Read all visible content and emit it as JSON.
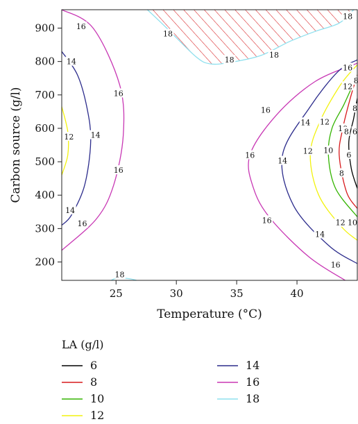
{
  "chart_data": {
    "type": "contour",
    "xlabel": "Temperature (°C)",
    "ylabel": "Carbon source (g/l)",
    "xlim": [
      20.5,
      45
    ],
    "ylim": [
      145,
      955
    ],
    "x_ticks": [
      25,
      30,
      35,
      40
    ],
    "y_ticks": [
      200,
      300,
      400,
      500,
      600,
      700,
      800,
      900
    ],
    "grid": false,
    "legend": {
      "title": "LA (g/l)",
      "placement": "bottom",
      "entries": [
        {
          "label": "6",
          "color": "#000000"
        },
        {
          "label": "8",
          "color": "#d7191c"
        },
        {
          "label": "10",
          "color": "#33b400"
        },
        {
          "label": "12",
          "color": "#f2f20d"
        },
        {
          "label": "14",
          "color": "#2c2c8c"
        },
        {
          "label": "16",
          "color": "#c837b4"
        },
        {
          "label": "18",
          "color": "#8ee0ee"
        }
      ]
    },
    "contours": [
      {
        "level": "12",
        "color": "#f2f20d",
        "points": [
          [
            20.5,
            665
          ],
          [
            21.0,
            590
          ],
          [
            21.0,
            520
          ],
          [
            20.5,
            460
          ]
        ],
        "labels": [
          {
            "x": 21.1,
            "y": 575
          }
        ]
      },
      {
        "level": "14",
        "color": "#2c2c8c",
        "points": [
          [
            20.5,
            830
          ],
          [
            21.8,
            760
          ],
          [
            22.6,
            660
          ],
          [
            22.9,
            560
          ],
          [
            22.4,
            430
          ],
          [
            21.3,
            340
          ],
          [
            20.5,
            310
          ]
        ],
        "labels": [
          {
            "x": 21.3,
            "y": 800
          },
          {
            "x": 23.3,
            "y": 580
          },
          {
            "x": 21.2,
            "y": 355
          }
        ]
      },
      {
        "level": "16",
        "color": "#c837b4",
        "points": [
          [
            20.5,
            955
          ],
          [
            23.1,
            900
          ],
          [
            25.3,
            730
          ],
          [
            25.6,
            580
          ],
          [
            24.8,
            430
          ],
          [
            23.4,
            330
          ],
          [
            20.5,
            235
          ]
        ],
        "labels": [
          {
            "x": 22.1,
            "y": 905
          },
          {
            "x": 25.2,
            "y": 705
          },
          {
            "x": 25.2,
            "y": 475
          },
          {
            "x": 22.2,
            "y": 315
          }
        ]
      },
      {
        "level": "18",
        "color": "#8ee0ee",
        "points": [
          [
            27.6,
            955
          ],
          [
            29.2,
            900
          ],
          [
            31.6,
            815
          ],
          [
            32.8,
            793
          ],
          [
            34.4,
            797
          ],
          [
            37.0,
            818
          ],
          [
            39.4,
            860
          ],
          [
            41.5,
            890
          ],
          [
            43.5,
            915
          ],
          [
            44.7,
            955
          ]
        ],
        "labels": [
          {
            "x": 29.3,
            "y": 883
          },
          {
            "x": 34.4,
            "y": 805
          },
          {
            "x": 38.1,
            "y": 820
          },
          {
            "x": 44.2,
            "y": 935
          }
        ]
      },
      {
        "level": "18",
        "color": "#8ee0ee",
        "points": [
          [
            24.6,
            145
          ],
          [
            25.1,
            152
          ],
          [
            26.1,
            150
          ],
          [
            26.7,
            145
          ]
        ],
        "labels": [
          {
            "x": 25.3,
            "y": 163
          }
        ]
      },
      {
        "level": "16",
        "color": "#c837b4",
        "points": [
          [
            45,
            795
          ],
          [
            41.5,
            740
          ],
          [
            38.3,
            640
          ],
          [
            36.1,
            520
          ],
          [
            36.4,
            420
          ],
          [
            37.8,
            330
          ],
          [
            41.0,
            215
          ],
          [
            44.0,
            145
          ]
        ],
        "labels": [
          {
            "x": 44.2,
            "y": 782
          },
          {
            "x": 37.4,
            "y": 655
          },
          {
            "x": 36.1,
            "y": 520
          },
          {
            "x": 37.5,
            "y": 325
          },
          {
            "x": 43.2,
            "y": 192
          }
        ]
      },
      {
        "level": "14",
        "color": "#2c2c8c",
        "points": [
          [
            45,
            805
          ],
          [
            43.4,
            770
          ],
          [
            41.1,
            665
          ],
          [
            38.8,
            520
          ],
          [
            39.7,
            370
          ],
          [
            42.6,
            250
          ],
          [
            45,
            195
          ]
        ],
        "labels": [
          {
            "x": 40.7,
            "y": 618
          },
          {
            "x": 38.8,
            "y": 503
          },
          {
            "x": 41.9,
            "y": 283
          }
        ]
      },
      {
        "level": "12",
        "color": "#f2f20d",
        "points": [
          [
            45,
            790
          ],
          [
            43.6,
            730
          ],
          [
            41.9,
            620
          ],
          [
            41.1,
            520
          ],
          [
            41.8,
            400
          ],
          [
            43.7,
            305
          ],
          [
            45,
            265
          ]
        ],
        "labels": [
          {
            "x": 44.2,
            "y": 726
          },
          {
            "x": 42.3,
            "y": 620
          },
          {
            "x": 40.9,
            "y": 532
          },
          {
            "x": 43.6,
            "y": 318
          }
        ]
      },
      {
        "level": "10",
        "color": "#33b400",
        "points": [
          [
            45,
            760
          ],
          [
            43.9,
            672
          ],
          [
            42.9,
            600
          ],
          [
            42.6,
            520
          ],
          [
            43.2,
            420
          ],
          [
            45,
            335
          ]
        ],
        "labels": [
          {
            "x": 43.8,
            "y": 600
          },
          {
            "x": 42.6,
            "y": 534
          },
          {
            "x": 44.6,
            "y": 318
          }
        ]
      },
      {
        "level": "8",
        "color": "#d7191c",
        "points": [
          [
            45,
            760
          ],
          [
            44.4,
            688
          ],
          [
            43.8,
            600
          ],
          [
            43.5,
            520
          ],
          [
            44.1,
            410
          ],
          [
            45,
            360
          ]
        ],
        "labels": [
          {
            "x": 44.9,
            "y": 743
          },
          {
            "x": 44.8,
            "y": 660
          },
          {
            "x": 44.1,
            "y": 590
          },
          {
            "x": 43.7,
            "y": 466
          }
        ]
      },
      {
        "level": "6",
        "color": "#000000",
        "points": [
          [
            45,
            690
          ],
          [
            44.7,
            630
          ],
          [
            44.3,
            560
          ],
          [
            44.5,
            480
          ],
          [
            45,
            420
          ]
        ],
        "labels": [
          {
            "x": 44.8,
            "y": 591
          },
          {
            "x": 44.3,
            "y": 521
          }
        ]
      }
    ],
    "hatched_region": {
      "level": "18",
      "color": "#d7191c"
    }
  }
}
